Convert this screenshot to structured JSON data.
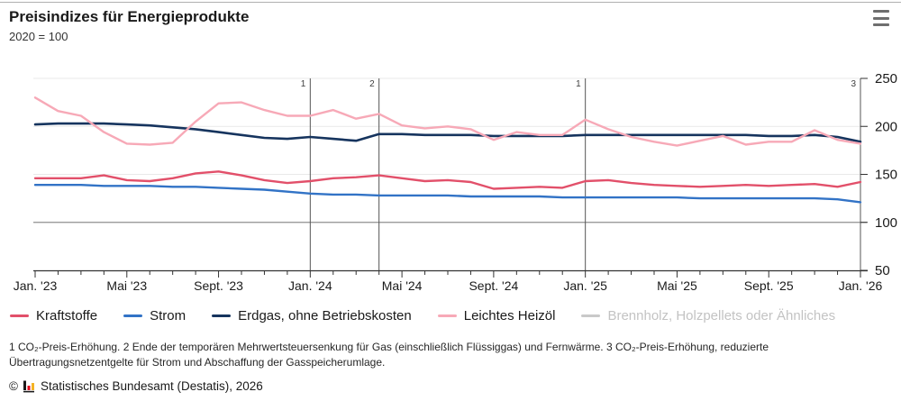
{
  "header": {
    "title": "Preisindizes für Energieprodukte",
    "subtitle": "2020 = 100"
  },
  "menu": {
    "icon": "hamburger-menu-icon"
  },
  "chart_data": {
    "type": "line",
    "x_range": [
      "Jan. '23",
      "Jan. '26"
    ],
    "x_months_total": 37,
    "x_tick_labels": [
      "Jan. '23",
      "Mai '23",
      "Sept. '23",
      "Jan. '24",
      "Mai '24",
      "Sept. '24",
      "Jan. '25",
      "Mai '25",
      "Sept. '25",
      "Jan. '26"
    ],
    "x_tick_month_step": 4,
    "y_ticks": [
      250,
      200,
      150,
      100,
      50
    ],
    "ylim": [
      50,
      250
    ],
    "y_baseline": 100,
    "grid": "horizontal-light",
    "legend_position": "bottom",
    "annotations": [
      {
        "label": "1",
        "month_index": 12
      },
      {
        "label": "2",
        "month_index": 15
      },
      {
        "label": "1",
        "month_index": 24
      },
      {
        "label": "3",
        "month_index": 36
      }
    ],
    "series": [
      {
        "name": "Kraftstoffe",
        "color": "#e2506a",
        "values": [
          146,
          146,
          146,
          149,
          144,
          143,
          146,
          151,
          153,
          149,
          144,
          141,
          143,
          146,
          147,
          149,
          146,
          143,
          144,
          142,
          135,
          136,
          137,
          136,
          143,
          144,
          141,
          139,
          138,
          137,
          138,
          139,
          138,
          139,
          140,
          137,
          142
        ]
      },
      {
        "name": "Strom",
        "color": "#3273c6",
        "values": [
          139,
          139,
          139,
          138,
          138,
          138,
          137,
          137,
          136,
          135,
          134,
          132,
          130,
          129,
          129,
          128,
          128,
          128,
          128,
          127,
          127,
          127,
          127,
          126,
          126,
          126,
          126,
          126,
          126,
          125,
          125,
          125,
          125,
          125,
          125,
          124,
          121
        ]
      },
      {
        "name": "Erdgas, ohne Betriebskosten",
        "color": "#16345e",
        "values": [
          202,
          203,
          203,
          203,
          202,
          201,
          199,
          197,
          194,
          191,
          188,
          187,
          189,
          187,
          185,
          192,
          192,
          191,
          191,
          191,
          190,
          190,
          190,
          190,
          191,
          191,
          191,
          191,
          191,
          191,
          191,
          191,
          190,
          190,
          191,
          189,
          184
        ]
      },
      {
        "name": "Leichtes Heizöl",
        "color": "#f7a9b7",
        "values": [
          230,
          216,
          211,
          194,
          182,
          181,
          183,
          205,
          224,
          225,
          217,
          211,
          211,
          217,
          208,
          213,
          201,
          198,
          200,
          197,
          186,
          194,
          191,
          191,
          207,
          197,
          189,
          184,
          180,
          185,
          190,
          181,
          184,
          184,
          196,
          186,
          182
        ]
      }
    ],
    "disabled_series": [
      {
        "name": "Brennholz, Holzpellets oder Ähnliches",
        "color": "#c9c9c9"
      }
    ]
  },
  "legend": [
    {
      "label": "Kraftstoffe",
      "color": "#e2506a",
      "active": true
    },
    {
      "label": "Strom",
      "color": "#3273c6",
      "active": true
    },
    {
      "label": "Erdgas, ohne Betriebskosten",
      "color": "#16345e",
      "active": true
    },
    {
      "label": "Leichtes Heizöl",
      "color": "#f7a9b7",
      "active": true
    },
    {
      "label": "Brennholz, Holzpellets oder Ähnliches",
      "color": "#c9c9c9",
      "active": false
    }
  ],
  "footnote": "1 CO₂-Preis-Erhöhung. 2 Ende der temporären Mehrwertsteuersenkung für Gas (einschließlich Flüssiggas) und Fernwärme. 3 CO₂-Preis-Erhöhung, reduzierte Übertragungsnetzentgelte für Strom und Abschaffung der Gasspeicherumlage.",
  "source": {
    "prefix": "©",
    "logo": "destatis-bars-logo",
    "text": "Statistisches Bundesamt (Destatis), 2026"
  },
  "colors": {
    "grid_light": "#e9e9e9",
    "baseline_100": "#8f8f8f",
    "axis": "#333333",
    "annotation_line": "#555555",
    "inactive_legend_text": "#c3c3c3",
    "menu_icon": "#6f6f6f"
  }
}
